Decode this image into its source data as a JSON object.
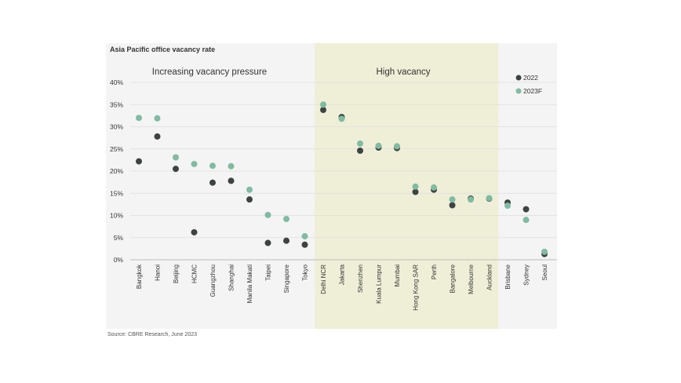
{
  "title": "Asia Pacific office vacancy rate",
  "source": "Source: CBRE Research, June 2023",
  "regions": [
    {
      "label": "Increasing vacancy pressure",
      "highlight": false
    },
    {
      "label": "High vacancy",
      "highlight": true
    }
  ],
  "colors": {
    "panel": "#f4f4f4",
    "highlight": "#efefd8",
    "series_2022": "#3d4341",
    "series_2023F": "#80bba2",
    "text": "#333333"
  },
  "chart_data": {
    "type": "scatter",
    "categories": [
      "Bangkok",
      "Hanoi",
      "Beijing",
      "HCMC",
      "Guangzhou",
      "Shanghai",
      "Manila Makati",
      "Taipei",
      "Singapore",
      "Tokyo",
      "Delhi NCR",
      "Jakarta",
      "Shenzhen",
      "Kuala Lumpur",
      "Mumbai",
      "Hong Kong SAR",
      "Perth",
      "Bangalore",
      "Melbourne",
      "Auckland",
      "Brisbane",
      "Sydney",
      "Seoul"
    ],
    "series": [
      {
        "name": "2022",
        "values": [
          22.2,
          27.8,
          20.5,
          6.2,
          17.4,
          17.8,
          13.6,
          3.8,
          4.3,
          3.4,
          33.8,
          32.2,
          24.6,
          25.3,
          25.2,
          15.3,
          15.8,
          12.3,
          13.8,
          13.8,
          12.9,
          11.4,
          1.3
        ]
      },
      {
        "name": "2023F",
        "values": [
          32.0,
          31.9,
          23.1,
          21.6,
          21.2,
          21.1,
          15.8,
          10.1,
          9.2,
          5.3,
          35.0,
          31.8,
          26.2,
          25.7,
          25.6,
          16.5,
          16.3,
          13.6,
          13.6,
          13.9,
          12.2,
          9.0,
          1.8
        ]
      }
    ],
    "region_spans": [
      [
        0,
        9
      ],
      [
        10,
        19
      ],
      [
        20,
        22
      ]
    ],
    "yticks": [
      "0%",
      "5%",
      "10%",
      "15%",
      "20%",
      "25%",
      "30%",
      "35%",
      "40%"
    ],
    "ylim": [
      0,
      40
    ],
    "y_unit": "%",
    "legend_position": "top-right",
    "grid": true
  }
}
